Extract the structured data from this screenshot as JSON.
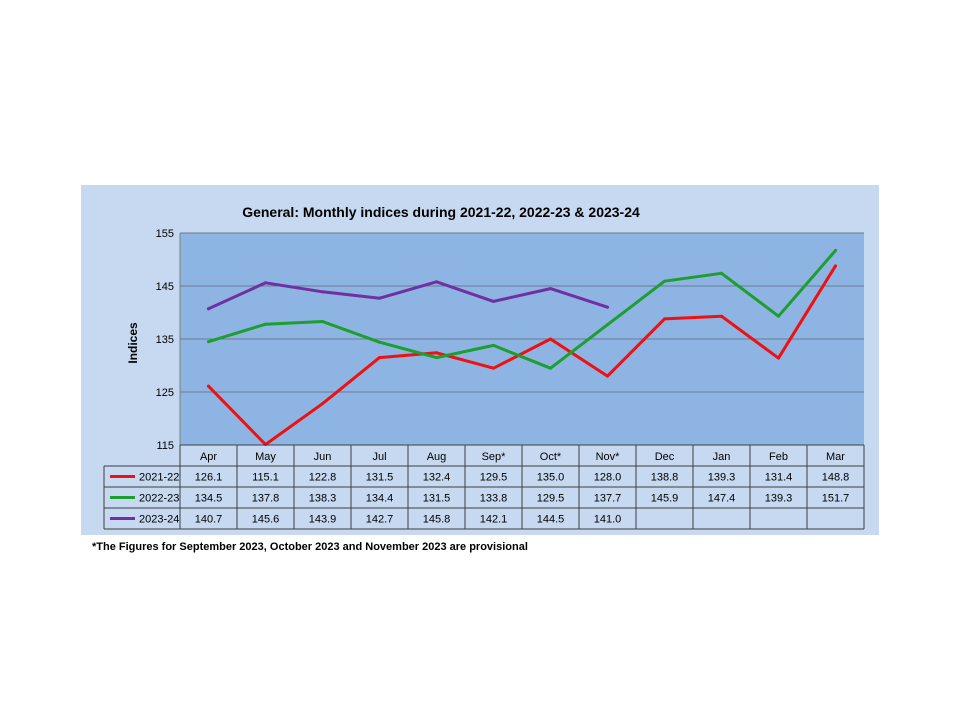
{
  "chart_data": {
    "type": "line",
    "title": "General: Monthly indices during 2021-22, 2022-23 & 2023-24",
    "ylabel": "Indices",
    "xlabel": "",
    "ylim": [
      115,
      155
    ],
    "yticks": [
      115,
      125,
      135,
      145,
      155
    ],
    "grid": true,
    "legend": "data-table",
    "categories": [
      "Apr",
      "May",
      "Jun",
      "Jul",
      "Aug",
      "Sep*",
      "Oct*",
      "Nov*",
      "Dec",
      "Jan",
      "Feb",
      "Mar"
    ],
    "series": [
      {
        "name": "2021-22",
        "color": "#ee1111",
        "values": [
          126.1,
          115.1,
          122.8,
          131.5,
          132.4,
          129.5,
          135.0,
          128.0,
          138.8,
          139.3,
          131.4,
          148.8
        ],
        "labels": [
          "126.1",
          "115.1",
          "122.8",
          "131.5",
          "132.4",
          "129.5",
          "135.0",
          "128.0",
          "138.8",
          "139.3",
          "131.4",
          "148.8"
        ]
      },
      {
        "name": "2022-23",
        "color": "#1e9e2e",
        "values": [
          134.5,
          137.8,
          138.3,
          134.4,
          131.5,
          133.8,
          129.5,
          137.7,
          145.9,
          147.4,
          139.3,
          151.7
        ],
        "labels": [
          "134.5",
          "137.8",
          "138.3",
          "134.4",
          "131.5",
          "133.8",
          "129.5",
          "137.7",
          "145.9",
          "147.4",
          "139.3",
          "151.7"
        ]
      },
      {
        "name": "2023-24",
        "color": "#7030a0",
        "values": [
          140.7,
          145.6,
          143.9,
          142.7,
          145.8,
          142.1,
          144.5,
          141.0,
          null,
          null,
          null,
          null
        ],
        "labels": [
          "140.7",
          "145.6",
          "143.9",
          "142.7",
          "145.8",
          "142.1",
          "144.5",
          "141.0",
          "",
          "",
          "",
          ""
        ]
      }
    ]
  },
  "footnote": "*The Figures for September 2023, October 2023 and November 2023 are provisional",
  "colors": {
    "panel_bg": "#c6d9f1",
    "plot_bg": "#8db4e2",
    "grid": "#6a7a90"
  }
}
